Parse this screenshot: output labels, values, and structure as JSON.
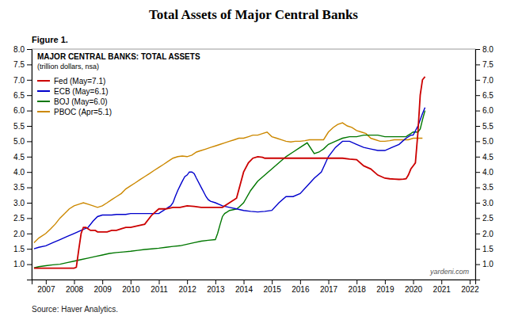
{
  "chart_data": {
    "type": "line",
    "title": "Total Assets of Major Central Banks",
    "annotations": [
      "Figure 1.",
      "MAJOR CENTRAL BANKS: TOTAL ASSETS",
      "(trillion dollars, nsa)",
      "yardeni.com",
      "Source: Haver Analytics."
    ],
    "xlim": [
      2006.5,
      2022.2
    ],
    "xticks": [
      2007,
      2008,
      2009,
      2010,
      2011,
      2012,
      2013,
      2014,
      2015,
      2016,
      2017,
      2018,
      2019,
      2020,
      2021,
      2022
    ],
    "ylim": [
      0.5,
      8.0
    ],
    "yticks": [
      {
        "value": 1.0,
        "label": "1.0"
      },
      1.5,
      {
        "value": 2.0,
        "label": "2.0"
      },
      2.5,
      {
        "value": 3.0,
        "label": "3.0"
      },
      3.5,
      {
        "value": 4.0,
        "label": "4.0"
      },
      4.5,
      {
        "value": 5.0,
        "label": "5.0"
      },
      5.5,
      {
        "value": 6.0,
        "label": "6.0"
      },
      6.5,
      {
        "value": 7.0,
        "label": "7.0"
      },
      7.5,
      {
        "value": 8.0,
        "label": "8.0"
      }
    ],
    "y2lim": [
      0.5,
      8.0
    ],
    "y2ticks": [
      {
        "value": 1.0,
        "label": "1.0"
      },
      1.5,
      {
        "value": 2.0,
        "label": "2.0"
      },
      2.5,
      {
        "value": 3.0,
        "label": "3.0"
      },
      3.5,
      {
        "value": 4.0,
        "label": "4.0"
      },
      4.5,
      {
        "value": 5.0,
        "label": "5.0"
      },
      5.5,
      {
        "value": 6.0,
        "label": "6.0"
      },
      6.5,
      {
        "value": 7.0,
        "label": "7.0"
      },
      7.5,
      {
        "value": 8.0,
        "label": "8.0"
      }
    ],
    "grid": false,
    "legend": "top-left",
    "series": [
      {
        "name": "Fed (May=7.1)",
        "color": "#cc0000",
        "x": [
          2006.58,
          2006.75,
          2007.0,
          2007.25,
          2007.5,
          2007.75,
          2008.0,
          2008.08,
          2008.17,
          2008.25,
          2008.33,
          2008.42,
          2008.5,
          2008.58,
          2008.67,
          2008.75,
          2008.83,
          2008.92,
          2009.0,
          2009.17,
          2009.33,
          2009.5,
          2009.67,
          2009.83,
          2010.0,
          2010.25,
          2010.5,
          2010.75,
          2011.0,
          2011.25,
          2011.5,
          2011.75,
          2012.0,
          2012.25,
          2012.5,
          2012.75,
          2013.0,
          2013.25,
          2013.5,
          2013.75,
          2014.0,
          2014.17,
          2014.33,
          2014.5,
          2014.67,
          2014.75,
          2015.0,
          2015.25,
          2015.5,
          2015.75,
          2016.0,
          2016.25,
          2016.5,
          2016.75,
          2017.0,
          2017.25,
          2017.5,
          2017.75,
          2018.0,
          2018.25,
          2018.5,
          2018.75,
          2019.0,
          2019.17,
          2019.33,
          2019.5,
          2019.67,
          2019.75,
          2019.83,
          2019.92,
          2020.0,
          2020.08,
          2020.17,
          2020.25,
          2020.33,
          2020.42
        ],
        "values": [
          0.87,
          0.87,
          0.87,
          0.87,
          0.87,
          0.87,
          0.87,
          0.9,
          1.5,
          2.0,
          2.2,
          2.2,
          2.15,
          2.1,
          2.1,
          2.1,
          2.05,
          2.05,
          2.05,
          2.05,
          2.1,
          2.1,
          2.15,
          2.2,
          2.2,
          2.25,
          2.3,
          2.6,
          2.8,
          2.8,
          2.85,
          2.85,
          2.9,
          2.88,
          2.85,
          2.85,
          2.85,
          2.85,
          3.0,
          3.15,
          4.0,
          4.3,
          4.45,
          4.5,
          4.48,
          4.45,
          4.45,
          4.45,
          4.45,
          4.45,
          4.45,
          4.45,
          4.45,
          4.45,
          4.45,
          4.45,
          4.45,
          4.42,
          4.4,
          4.2,
          4.1,
          3.9,
          3.8,
          3.78,
          3.77,
          3.76,
          3.77,
          3.78,
          3.9,
          4.1,
          4.2,
          4.3,
          5.3,
          6.5,
          7.0,
          7.1
        ]
      },
      {
        "name": "ECB (May=6.1)",
        "color": "#0000cc",
        "x": [
          2006.58,
          2006.75,
          2007.0,
          2007.25,
          2007.5,
          2007.75,
          2008.0,
          2008.25,
          2008.5,
          2008.67,
          2008.83,
          2009.0,
          2009.17,
          2009.33,
          2009.5,
          2009.67,
          2009.83,
          2010.0,
          2010.25,
          2010.5,
          2010.75,
          2011.0,
          2011.08,
          2011.17,
          2011.25,
          2011.33,
          2011.42,
          2011.5,
          2011.58,
          2011.67,
          2011.75,
          2011.83,
          2011.92,
          2012.0,
          2012.08,
          2012.17,
          2012.25,
          2012.33,
          2012.5,
          2012.67,
          2012.75,
          2012.83,
          2013.0,
          2013.25,
          2013.5,
          2013.75,
          2014.0,
          2014.25,
          2014.5,
          2014.75,
          2015.0,
          2015.25,
          2015.5,
          2015.75,
          2016.0,
          2016.25,
          2016.5,
          2016.75,
          2017.0,
          2017.25,
          2017.5,
          2017.75,
          2018.0,
          2018.25,
          2018.5,
          2018.75,
          2019.0,
          2019.25,
          2019.5,
          2019.75,
          2019.92,
          2020.0,
          2020.17,
          2020.33,
          2020.42
        ],
        "values": [
          1.5,
          1.55,
          1.6,
          1.7,
          1.8,
          1.9,
          2.0,
          2.1,
          2.2,
          2.4,
          2.55,
          2.6,
          2.6,
          2.6,
          2.62,
          2.62,
          2.62,
          2.65,
          2.65,
          2.65,
          2.65,
          2.65,
          2.7,
          2.75,
          2.8,
          2.85,
          2.9,
          3.0,
          3.2,
          3.4,
          3.55,
          3.7,
          3.85,
          3.9,
          4.0,
          4.0,
          3.95,
          3.8,
          3.5,
          3.2,
          3.1,
          3.05,
          3.0,
          2.9,
          2.85,
          2.8,
          2.75,
          2.72,
          2.7,
          2.72,
          2.75,
          3.0,
          3.2,
          3.2,
          3.3,
          3.55,
          3.8,
          4.0,
          4.5,
          4.8,
          5.0,
          5.0,
          4.9,
          4.8,
          4.75,
          4.7,
          4.7,
          4.8,
          4.9,
          5.1,
          5.2,
          5.2,
          5.5,
          5.9,
          6.1
        ]
      },
      {
        "name": "BOJ (May=6.0)",
        "color": "#007700",
        "x": [
          2006.58,
          2006.75,
          2007.0,
          2007.25,
          2007.5,
          2007.75,
          2008.0,
          2008.25,
          2008.5,
          2008.75,
          2009.0,
          2009.25,
          2009.5,
          2009.75,
          2010.0,
          2010.25,
          2010.5,
          2010.75,
          2011.0,
          2011.25,
          2011.5,
          2011.75,
          2012.0,
          2012.25,
          2012.5,
          2012.75,
          2013.0,
          2013.08,
          2013.17,
          2013.25,
          2013.33,
          2013.42,
          2013.5,
          2013.67,
          2013.75,
          2013.83,
          2014.0,
          2014.25,
          2014.5,
          2014.75,
          2015.0,
          2015.25,
          2015.5,
          2015.75,
          2016.0,
          2016.25,
          2016.5,
          2016.67,
          2016.75,
          2016.83,
          2017.0,
          2017.25,
          2017.5,
          2017.75,
          2018.0,
          2018.25,
          2018.5,
          2018.75,
          2019.0,
          2019.25,
          2019.5,
          2019.75,
          2019.83,
          2019.92,
          2020.0,
          2020.08,
          2020.17,
          2020.25,
          2020.33,
          2020.42
        ],
        "values": [
          0.88,
          0.92,
          0.95,
          0.98,
          1.0,
          1.05,
          1.1,
          1.15,
          1.2,
          1.25,
          1.3,
          1.35,
          1.38,
          1.4,
          1.42,
          1.45,
          1.48,
          1.5,
          1.52,
          1.55,
          1.58,
          1.6,
          1.65,
          1.7,
          1.75,
          1.78,
          1.8,
          2.0,
          2.3,
          2.55,
          2.65,
          2.7,
          2.75,
          2.78,
          2.8,
          2.85,
          3.0,
          3.4,
          3.7,
          3.9,
          4.1,
          4.3,
          4.5,
          4.65,
          4.8,
          4.95,
          4.6,
          4.65,
          4.7,
          4.75,
          4.9,
          5.0,
          5.1,
          5.15,
          5.15,
          5.2,
          5.2,
          5.2,
          5.15,
          5.15,
          5.15,
          5.15,
          5.2,
          5.25,
          5.3,
          5.3,
          5.3,
          5.4,
          5.7,
          6.0
        ]
      },
      {
        "name": "PBOC (Apr=5.1)",
        "color": "#cc8800",
        "x": [
          2006.58,
          2006.75,
          2007.0,
          2007.17,
          2007.33,
          2007.5,
          2007.67,
          2007.83,
          2008.0,
          2008.17,
          2008.33,
          2008.5,
          2008.67,
          2008.83,
          2009.0,
          2009.17,
          2009.33,
          2009.5,
          2009.67,
          2009.83,
          2010.0,
          2010.17,
          2010.33,
          2010.5,
          2010.67,
          2010.83,
          2011.0,
          2011.17,
          2011.33,
          2011.5,
          2011.67,
          2011.83,
          2012.0,
          2012.17,
          2012.33,
          2012.5,
          2012.67,
          2012.83,
          2013.0,
          2013.17,
          2013.33,
          2013.5,
          2013.67,
          2013.83,
          2014.0,
          2014.17,
          2014.33,
          2014.5,
          2014.67,
          2014.83,
          2015.0,
          2015.17,
          2015.33,
          2015.5,
          2015.67,
          2015.83,
          2016.0,
          2016.17,
          2016.33,
          2016.5,
          2016.67,
          2016.83,
          2017.0,
          2017.17,
          2017.33,
          2017.5,
          2017.67,
          2017.83,
          2018.0,
          2018.17,
          2018.33,
          2018.5,
          2018.67,
          2018.83,
          2019.0,
          2019.17,
          2019.33,
          2019.5,
          2019.67,
          2019.83,
          2020.0,
          2020.17,
          2020.33
        ],
        "values": [
          1.7,
          1.85,
          2.0,
          2.15,
          2.3,
          2.5,
          2.65,
          2.8,
          2.9,
          2.95,
          3.0,
          2.95,
          2.9,
          2.85,
          2.9,
          3.0,
          3.1,
          3.2,
          3.3,
          3.45,
          3.55,
          3.65,
          3.75,
          3.85,
          3.95,
          4.05,
          4.15,
          4.25,
          4.35,
          4.45,
          4.5,
          4.52,
          4.5,
          4.55,
          4.65,
          4.7,
          4.75,
          4.8,
          4.85,
          4.9,
          4.95,
          5.0,
          5.05,
          5.1,
          5.1,
          5.15,
          5.2,
          5.2,
          5.25,
          5.3,
          5.15,
          5.1,
          5.05,
          5.0,
          4.98,
          5.0,
          5.0,
          5.02,
          5.05,
          5.05,
          5.05,
          5.05,
          5.3,
          5.45,
          5.55,
          5.6,
          5.5,
          5.45,
          5.35,
          5.3,
          5.25,
          5.1,
          5.05,
          5.0,
          5.0,
          5.02,
          5.05,
          5.05,
          5.05,
          5.05,
          5.1,
          5.1,
          5.1
        ]
      }
    ]
  }
}
